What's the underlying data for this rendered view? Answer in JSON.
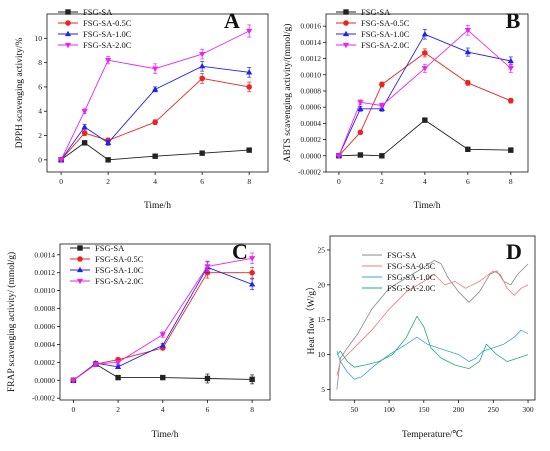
{
  "colors": {
    "SA": "#222222",
    "SA-0.5C": "#ee2222",
    "SA-1.0C": "#2222ee",
    "SA-2.0C": "#ee22ee",
    "D-SA": "#888888",
    "D-SA-0.5C": "#f07878",
    "D-SA-1.0C": "#3aa0ee",
    "D-SA-2.0C": "#22aa7a"
  },
  "chart_data": [
    {
      "panel": "A",
      "type": "line",
      "xlabel": "Time/h",
      "ylabel": "DPPH scavenging activity/%",
      "x": [
        0,
        1,
        2,
        4,
        6,
        8
      ],
      "xticks": [
        0,
        2,
        4,
        6,
        8
      ],
      "xlim": [
        -0.6,
        8.8
      ],
      "ylim": [
        -1,
        12
      ],
      "yticks": [
        0,
        2,
        4,
        6,
        8,
        10
      ],
      "ytick_labels": [
        "0",
        "2",
        "4",
        "6",
        "8",
        "10"
      ],
      "legend": "top-left",
      "series": [
        {
          "name": "FSG-SA",
          "marker": "square",
          "color_key": "SA",
          "values": [
            0,
            1.4,
            0,
            0.3,
            0.55,
            0.8
          ],
          "err": [
            0,
            0.1,
            0.05,
            0.05,
            0.05,
            0.1
          ]
        },
        {
          "name": "FSG-SA-0.5C",
          "marker": "circle",
          "color_key": "SA-0.5C",
          "values": [
            0,
            2.2,
            1.6,
            3.1,
            6.7,
            6.0
          ],
          "err": [
            0,
            0.2,
            0.2,
            0.2,
            0.4,
            0.4
          ]
        },
        {
          "name": "FSG-SA-1.0C",
          "marker": "triangle-up",
          "color_key": "SA-1.0C",
          "values": [
            0,
            2.7,
            1.4,
            5.8,
            7.7,
            7.2
          ],
          "err": [
            0,
            0.2,
            0.2,
            0.2,
            0.4,
            0.4
          ]
        },
        {
          "name": "FSG-SA-2.0C",
          "marker": "triangle-down",
          "color_key": "SA-2.0C",
          "values": [
            0,
            4.0,
            8.2,
            7.5,
            8.7,
            10.6
          ],
          "err": [
            0,
            0.2,
            0.3,
            0.4,
            0.4,
            0.5
          ]
        }
      ]
    },
    {
      "panel": "B",
      "type": "line",
      "xlabel": "Time/h",
      "ylabel": "ABTS scavenging activity/(mmol/g)",
      "x": [
        0,
        1,
        2,
        4,
        6,
        8
      ],
      "xticks": [
        0,
        2,
        4,
        6,
        8
      ],
      "xlim": [
        -0.6,
        8.8
      ],
      "ylim": [
        -0.0002,
        0.00175
      ],
      "yticks": [
        -0.0002,
        0,
        0.0002,
        0.0004,
        0.0006,
        0.0008,
        0.001,
        0.0012,
        0.0014,
        0.0016
      ],
      "ytick_labels": [
        "-0.0002",
        "0.0000",
        "0.0002",
        "0.0004",
        "0.0006",
        "0.0008",
        "0.0010",
        "0.0012",
        "0.0014",
        "0.0016"
      ],
      "legend": "top-left",
      "series": [
        {
          "name": "FSG-SA",
          "marker": "square",
          "color_key": "SA",
          "values": [
            0,
            1e-05,
            0,
            0.00044,
            8e-05,
            7e-05
          ],
          "err": [
            0,
            0,
            0,
            2e-05,
            1e-05,
            1e-05
          ]
        },
        {
          "name": "FSG-SA-0.5C",
          "marker": "circle",
          "color_key": "SA-0.5C",
          "values": [
            0,
            0.00029,
            0.00088,
            0.00127,
            0.0009,
            0.00068
          ],
          "err": [
            0,
            2e-05,
            3e-05,
            5e-05,
            3e-05,
            3e-05
          ]
        },
        {
          "name": "FSG-SA-1.0C",
          "marker": "triangle-up",
          "color_key": "SA-1.0C",
          "values": [
            0,
            0.00058,
            0.00058,
            0.0015,
            0.00128,
            0.00117
          ],
          "err": [
            0,
            3e-05,
            3e-05,
            6e-05,
            5e-05,
            5e-05
          ]
        },
        {
          "name": "FSG-SA-2.0C",
          "marker": "triangle-down",
          "color_key": "SA-2.0C",
          "values": [
            0,
            0.00066,
            0.00062,
            0.00108,
            0.00155,
            0.00108
          ],
          "err": [
            0,
            3e-05,
            3e-05,
            5e-05,
            6e-05,
            5e-05
          ]
        }
      ]
    },
    {
      "panel": "C",
      "type": "line",
      "xlabel": "Time/h",
      "ylabel": "FRAP scavenging activity/ (mmol/g)",
      "x": [
        0,
        1,
        2,
        4,
        6,
        8
      ],
      "xticks": [
        0,
        2,
        4,
        6,
        8
      ],
      "xlim": [
        -0.6,
        8.8
      ],
      "ylim": [
        -0.00022,
        0.00152
      ],
      "yticks": [
        -0.0002,
        0,
        0.0002,
        0.0004,
        0.0006,
        0.0008,
        0.001,
        0.0012,
        0.0014
      ],
      "ytick_labels": [
        "-0.0002",
        "0.0000",
        "0.0002",
        "0.0004",
        "0.0006",
        "0.0008",
        "0.0010",
        "0.0012",
        "0.0014"
      ],
      "legend": "top-left",
      "series": [
        {
          "name": "FSG-SA",
          "marker": "square",
          "color_key": "SA",
          "values": [
            0,
            0.00018,
            3e-05,
            3e-05,
            2e-05,
            1e-05
          ],
          "err": [
            0,
            2e-05,
            1e-05,
            1e-05,
            5e-05,
            5e-05
          ]
        },
        {
          "name": "FSG-SA-0.5C",
          "marker": "circle",
          "color_key": "SA-0.5C",
          "values": [
            0,
            0.00018,
            0.00023,
            0.00036,
            0.0012,
            0.0012
          ],
          "err": [
            0,
            2e-05,
            2e-05,
            2e-05,
            6e-05,
            6e-05
          ]
        },
        {
          "name": "FSG-SA-1.0C",
          "marker": "triangle-up",
          "color_key": "SA-1.0C",
          "values": [
            0,
            0.00019,
            0.00015,
            0.00039,
            0.00126,
            0.00107
          ],
          "err": [
            0,
            2e-05,
            2e-05,
            2e-05,
            6e-05,
            6e-05
          ]
        },
        {
          "name": "FSG-SA-2.0C",
          "marker": "triangle-down",
          "color_key": "SA-2.0C",
          "values": [
            0,
            0.00018,
            0.0002,
            0.00051,
            0.00127,
            0.00136
          ],
          "err": [
            0,
            2e-05,
            2e-05,
            3e-05,
            6e-05,
            6e-05
          ]
        }
      ]
    },
    {
      "panel": "D",
      "type": "line",
      "xlabel": "Temperature/℃",
      "ylabel": "Heat flow（W/g）",
      "xticks": [
        50,
        100,
        150,
        200,
        250,
        300
      ],
      "xlim": [
        15,
        310
      ],
      "ylim": [
        3.5,
        27
      ],
      "yticks": [
        5,
        10,
        15,
        20,
        25
      ],
      "ytick_labels": [
        "5",
        "10",
        "15",
        "20",
        "25"
      ],
      "legend": "top-left",
      "series": [
        {
          "name": "FSG-SA",
          "color_key": "D-SA",
          "x": [
            25,
            30,
            40,
            55,
            75,
            100,
            125,
            150,
            165,
            175,
            185,
            200,
            215,
            230,
            245,
            255,
            265,
            275,
            285,
            295,
            300
          ],
          "y": [
            5,
            9.5,
            11,
            13,
            16.5,
            19.5,
            21,
            22.5,
            23.5,
            23,
            21,
            19,
            17.5,
            19,
            21.5,
            22,
            20.5,
            20,
            21.5,
            22.5,
            23
          ]
        },
        {
          "name": "FSG-SA-0.5C",
          "color_key": "D-SA-0.5C",
          "x": [
            25,
            30,
            40,
            55,
            75,
            100,
            125,
            150,
            165,
            180,
            195,
            210,
            230,
            250,
            260,
            270,
            280,
            290,
            300
          ],
          "y": [
            7,
            9,
            10,
            11.5,
            13.5,
            16.5,
            19,
            20.5,
            21.5,
            20,
            20.5,
            19.5,
            20.5,
            22,
            21.5,
            19.5,
            18.5,
            19.5,
            20
          ]
        },
        {
          "name": "FSG-SA-1.0C",
          "color_key": "D-SA-1.0C",
          "x": [
            25,
            30,
            40,
            50,
            60,
            80,
            100,
            125,
            140,
            155,
            170,
            185,
            200,
            215,
            225,
            235,
            250,
            265,
            280,
            290,
            300
          ],
          "y": [
            10.5,
            9,
            7.5,
            6.5,
            6.8,
            8.5,
            10,
            11.5,
            12.5,
            11.5,
            11,
            10.5,
            10,
            9,
            9.5,
            10.5,
            11,
            11.5,
            12.5,
            13.5,
            13
          ]
        },
        {
          "name": "FSG-SA-2.0C",
          "color_key": "D-SA-2.0C",
          "x": [
            25,
            30,
            40,
            50,
            65,
            85,
            105,
            125,
            140,
            150,
            160,
            175,
            195,
            215,
            230,
            240,
            255,
            270,
            285,
            300
          ],
          "y": [
            10,
            10.5,
            9,
            8.2,
            8.5,
            9,
            10,
            12.5,
            15.5,
            14,
            11,
            9.5,
            8.5,
            8,
            9,
            11.5,
            10,
            9,
            9.5,
            10
          ]
        }
      ]
    }
  ]
}
